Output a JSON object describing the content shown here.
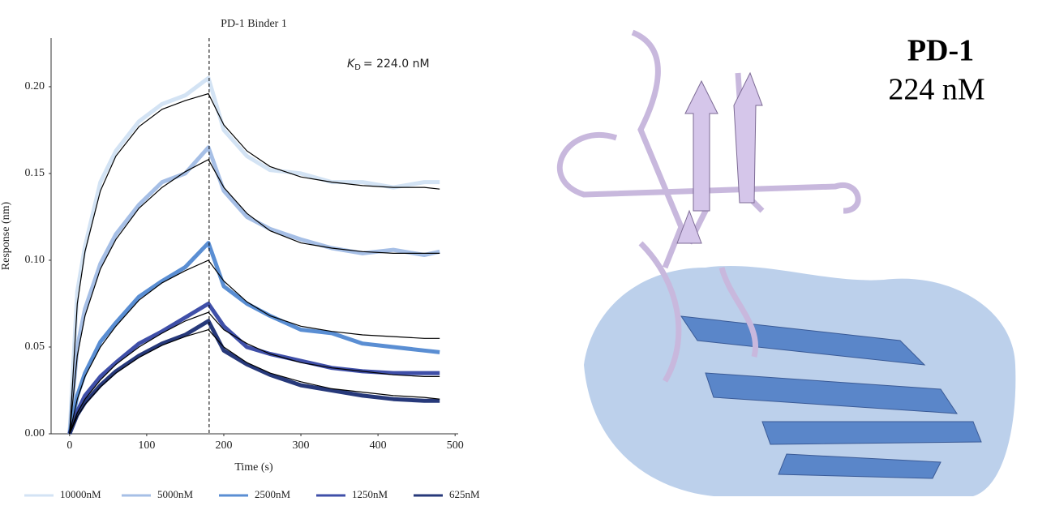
{
  "chart_data": {
    "type": "line",
    "title": "PD-1 Binder 1",
    "x_label": "Time (s)",
    "y_label": "Response (nm)",
    "annotation": {
      "symbol": "K",
      "subscript": "D",
      "text": "= 224.0 nM"
    },
    "association_end": 181,
    "x": [
      0,
      10,
      20,
      40,
      60,
      90,
      120,
      150,
      180,
      200,
      230,
      260,
      300,
      340,
      380,
      420,
      460,
      480
    ],
    "series": [
      {
        "name": "10000nM",
        "color": "#d3e3f4",
        "values": [
          0,
          0.082,
          0.108,
          0.145,
          0.163,
          0.18,
          0.19,
          0.195,
          0.205,
          0.175,
          0.16,
          0.152,
          0.15,
          0.145,
          0.145,
          0.142,
          0.145,
          0.145
        ],
        "fit_values": [
          0,
          0.075,
          0.105,
          0.14,
          0.16,
          0.177,
          0.187,
          0.192,
          0.196,
          0.178,
          0.163,
          0.154,
          0.148,
          0.145,
          0.143,
          0.142,
          0.142,
          0.141
        ]
      },
      {
        "name": "5000nM",
        "color": "#a6bfe6",
        "values": [
          0,
          0.05,
          0.072,
          0.098,
          0.115,
          0.132,
          0.145,
          0.15,
          0.165,
          0.14,
          0.125,
          0.118,
          0.112,
          0.107,
          0.104,
          0.106,
          0.103,
          0.105
        ],
        "fit_values": [
          0,
          0.045,
          0.068,
          0.095,
          0.112,
          0.13,
          0.142,
          0.151,
          0.158,
          0.142,
          0.127,
          0.117,
          0.11,
          0.107,
          0.105,
          0.104,
          0.104,
          0.104
        ]
      },
      {
        "name": "2500nM",
        "color": "#5a8ed3",
        "values": [
          0,
          0.022,
          0.035,
          0.053,
          0.064,
          0.079,
          0.088,
          0.096,
          0.11,
          0.085,
          0.075,
          0.068,
          0.06,
          0.058,
          0.052,
          0.05,
          0.048,
          0.047
        ],
        "fit_values": [
          0,
          0.02,
          0.033,
          0.05,
          0.062,
          0.077,
          0.087,
          0.094,
          0.1,
          0.088,
          0.076,
          0.068,
          0.062,
          0.059,
          0.057,
          0.056,
          0.055,
          0.055
        ]
      },
      {
        "name": "1250nM",
        "color": "#3f4fa8",
        "values": [
          0,
          0.013,
          0.022,
          0.033,
          0.041,
          0.052,
          0.059,
          0.067,
          0.075,
          0.062,
          0.05,
          0.046,
          0.042,
          0.038,
          0.036,
          0.035,
          0.035,
          0.035
        ],
        "fit_values": [
          0,
          0.012,
          0.02,
          0.031,
          0.04,
          0.05,
          0.058,
          0.065,
          0.07,
          0.06,
          0.052,
          0.046,
          0.041,
          0.038,
          0.036,
          0.034,
          0.033,
          0.033
        ]
      },
      {
        "name": "625nM",
        "color": "#27397a",
        "values": [
          0,
          0.011,
          0.018,
          0.028,
          0.036,
          0.045,
          0.052,
          0.057,
          0.065,
          0.048,
          0.04,
          0.034,
          0.028,
          0.025,
          0.022,
          0.02,
          0.019,
          0.019
        ],
        "fit_values": [
          0,
          0.01,
          0.017,
          0.027,
          0.035,
          0.044,
          0.051,
          0.056,
          0.06,
          0.05,
          0.041,
          0.035,
          0.03,
          0.026,
          0.024,
          0.022,
          0.021,
          0.02
        ]
      }
    ],
    "fit_color": "#000000",
    "xlim": [
      -24,
      504
    ],
    "xticks": [
      0,
      100,
      200,
      300,
      400,
      500
    ],
    "ylim": [
      0,
      0.228
    ],
    "yticks": [
      {
        "value": 0,
        "label": "0.00"
      },
      {
        "value": 0.05,
        "label": "0.05"
      },
      {
        "value": 0.1,
        "label": "0.10"
      },
      {
        "value": 0.15,
        "label": "0.15"
      },
      {
        "value": 0.2,
        "label": "0.20"
      }
    ],
    "grid": false,
    "legend": "bottom"
  },
  "figure_label": {
    "title": "PD-1",
    "value": "224 nM"
  }
}
